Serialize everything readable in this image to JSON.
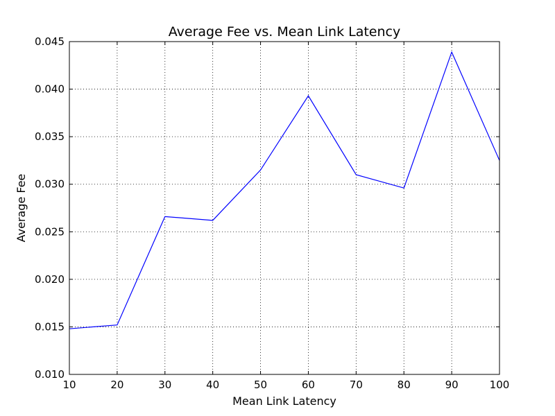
{
  "chart_data": {
    "type": "line",
    "title": "Average Fee vs. Mean Link Latency",
    "xlabel": "Mean Link Latency",
    "ylabel": "Average Fee",
    "xlim": [
      10,
      100
    ],
    "ylim": [
      0.01,
      0.045
    ],
    "grid": true,
    "x_ticks": [
      10,
      20,
      30,
      40,
      50,
      60,
      70,
      80,
      90,
      100
    ],
    "x_tick_labels": [
      "10",
      "20",
      "30",
      "40",
      "50",
      "60",
      "70",
      "80",
      "90",
      "100"
    ],
    "y_ticks": [
      0.01,
      0.015,
      0.02,
      0.025,
      0.03,
      0.035,
      0.04,
      0.045
    ],
    "y_tick_labels": [
      "0.010",
      "0.015",
      "0.020",
      "0.025",
      "0.030",
      "0.035",
      "0.040",
      "0.045"
    ],
    "series": [
      {
        "color": "#0000ff",
        "x": [
          10,
          20,
          30,
          40,
          50,
          60,
          70,
          80,
          90,
          100
        ],
        "y": [
          0.0148,
          0.0152,
          0.0266,
          0.0262,
          0.0315,
          0.0393,
          0.031,
          0.0296,
          0.0439,
          0.0325
        ]
      }
    ]
  }
}
